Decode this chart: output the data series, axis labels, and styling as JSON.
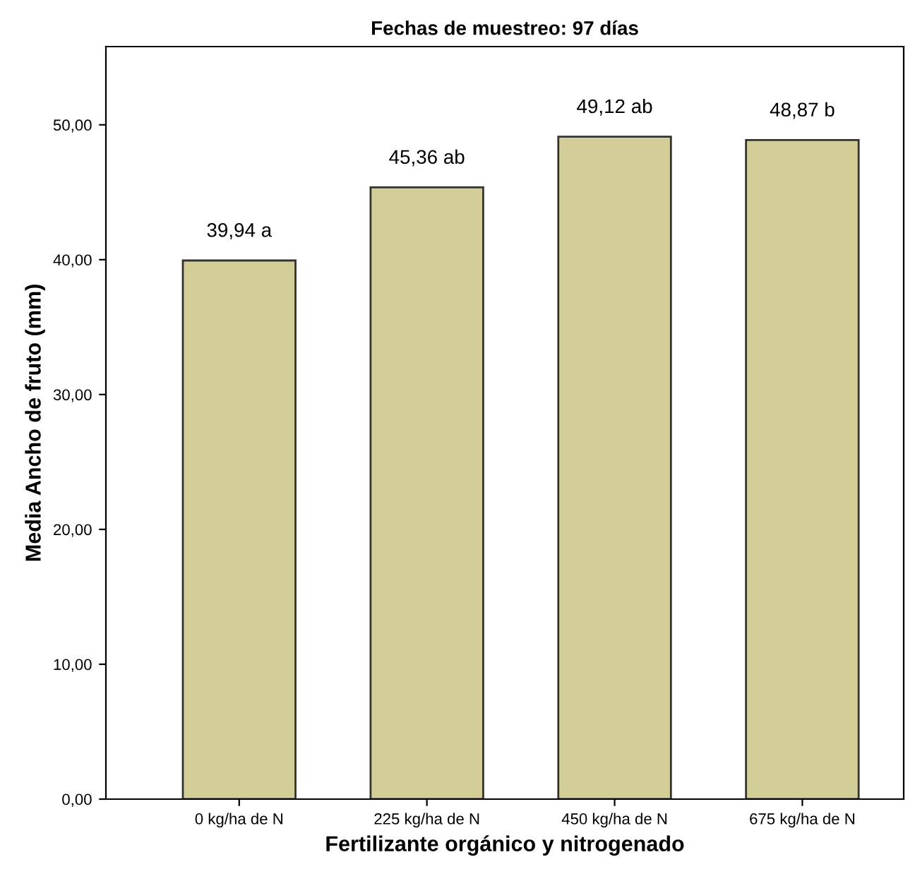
{
  "chart_data": {
    "type": "bar",
    "title": "Fechas de muestreo: 97 días",
    "xlabel": "Fertilizante orgánico y nitrogenado",
    "ylabel": "Media Ancho de fruto (mm)",
    "categories": [
      "0 kg/ha de N",
      "225 kg/ha de N",
      "450 kg/ha de N",
      "675 kg/ha de N"
    ],
    "values": [
      39.94,
      45.36,
      49.12,
      48.87
    ],
    "value_labels": [
      "39,94 a",
      "45,36 ab",
      "49,12 ab",
      "48,87 b"
    ],
    "color": "#d3ce98",
    "ylim": [
      0,
      55.8
    ],
    "yticks": [
      {
        "value": 0,
        "label": "0,00"
      },
      {
        "value": 10,
        "label": "10,00"
      },
      {
        "value": 20,
        "label": "20,00"
      },
      {
        "value": 30,
        "label": "30,00"
      },
      {
        "value": 40,
        "label": "40,00"
      },
      {
        "value": 50,
        "label": "50,00"
      }
    ],
    "grid": false,
    "legend": false
  }
}
